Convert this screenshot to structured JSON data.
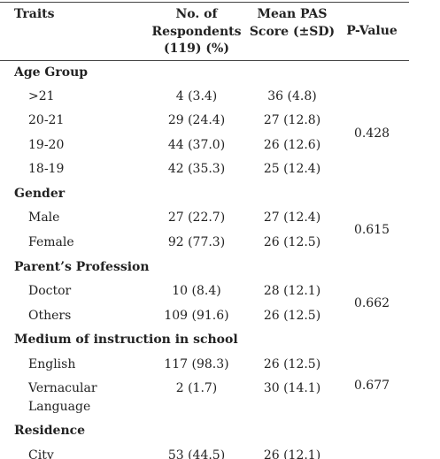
{
  "header": {
    "traits": "Traits",
    "respondents": [
      "No. of",
      "Respondents",
      "(119) (%)"
    ],
    "mean": [
      "Mean PAS",
      "Score (±SD)"
    ],
    "p_value": "P-Value"
  },
  "groups": [
    {
      "title": "Age Group",
      "rows": [
        [
          ">21",
          "4 (3.4)",
          "36 (4.8)"
        ],
        [
          "20-21",
          "29 (24.4)",
          "27 (12.8)"
        ],
        [
          "19-20",
          "44 (37.0)",
          "26 (12.6)"
        ],
        [
          "18-19",
          "42 (35.3)",
          "25 (12.4)"
        ]
      ],
      "p_value": "0.428"
    },
    {
      "title": "Gender",
      "rows": [
        [
          "Male",
          "27 (22.7)",
          "27 (12.4)"
        ],
        [
          "Female",
          "92 (77.3)",
          "26 (12.5)"
        ]
      ],
      "p_value": "0.615"
    },
    {
      "title": "Parent’s Profession",
      "rows": [
        [
          "Doctor",
          "10 (8.4)",
          "28 (12.1)"
        ],
        [
          "Others",
          "109 (91.6)",
          "26 (12.5)"
        ]
      ],
      "p_value": "0.662"
    },
    {
      "title": "Medium of instruction in school",
      "rows": [
        [
          "English",
          "117 (98.3)",
          "26 (12.5)"
        ],
        [
          "Vernacular Language",
          "2 (1.7)",
          "30 (14.1)"
        ]
      ],
      "p_value": "0.677"
    },
    {
      "title": "Residence",
      "rows": [
        [
          "City",
          "53 (44.5)",
          "26 (12.1)"
        ]
      ]
    }
  ]
}
